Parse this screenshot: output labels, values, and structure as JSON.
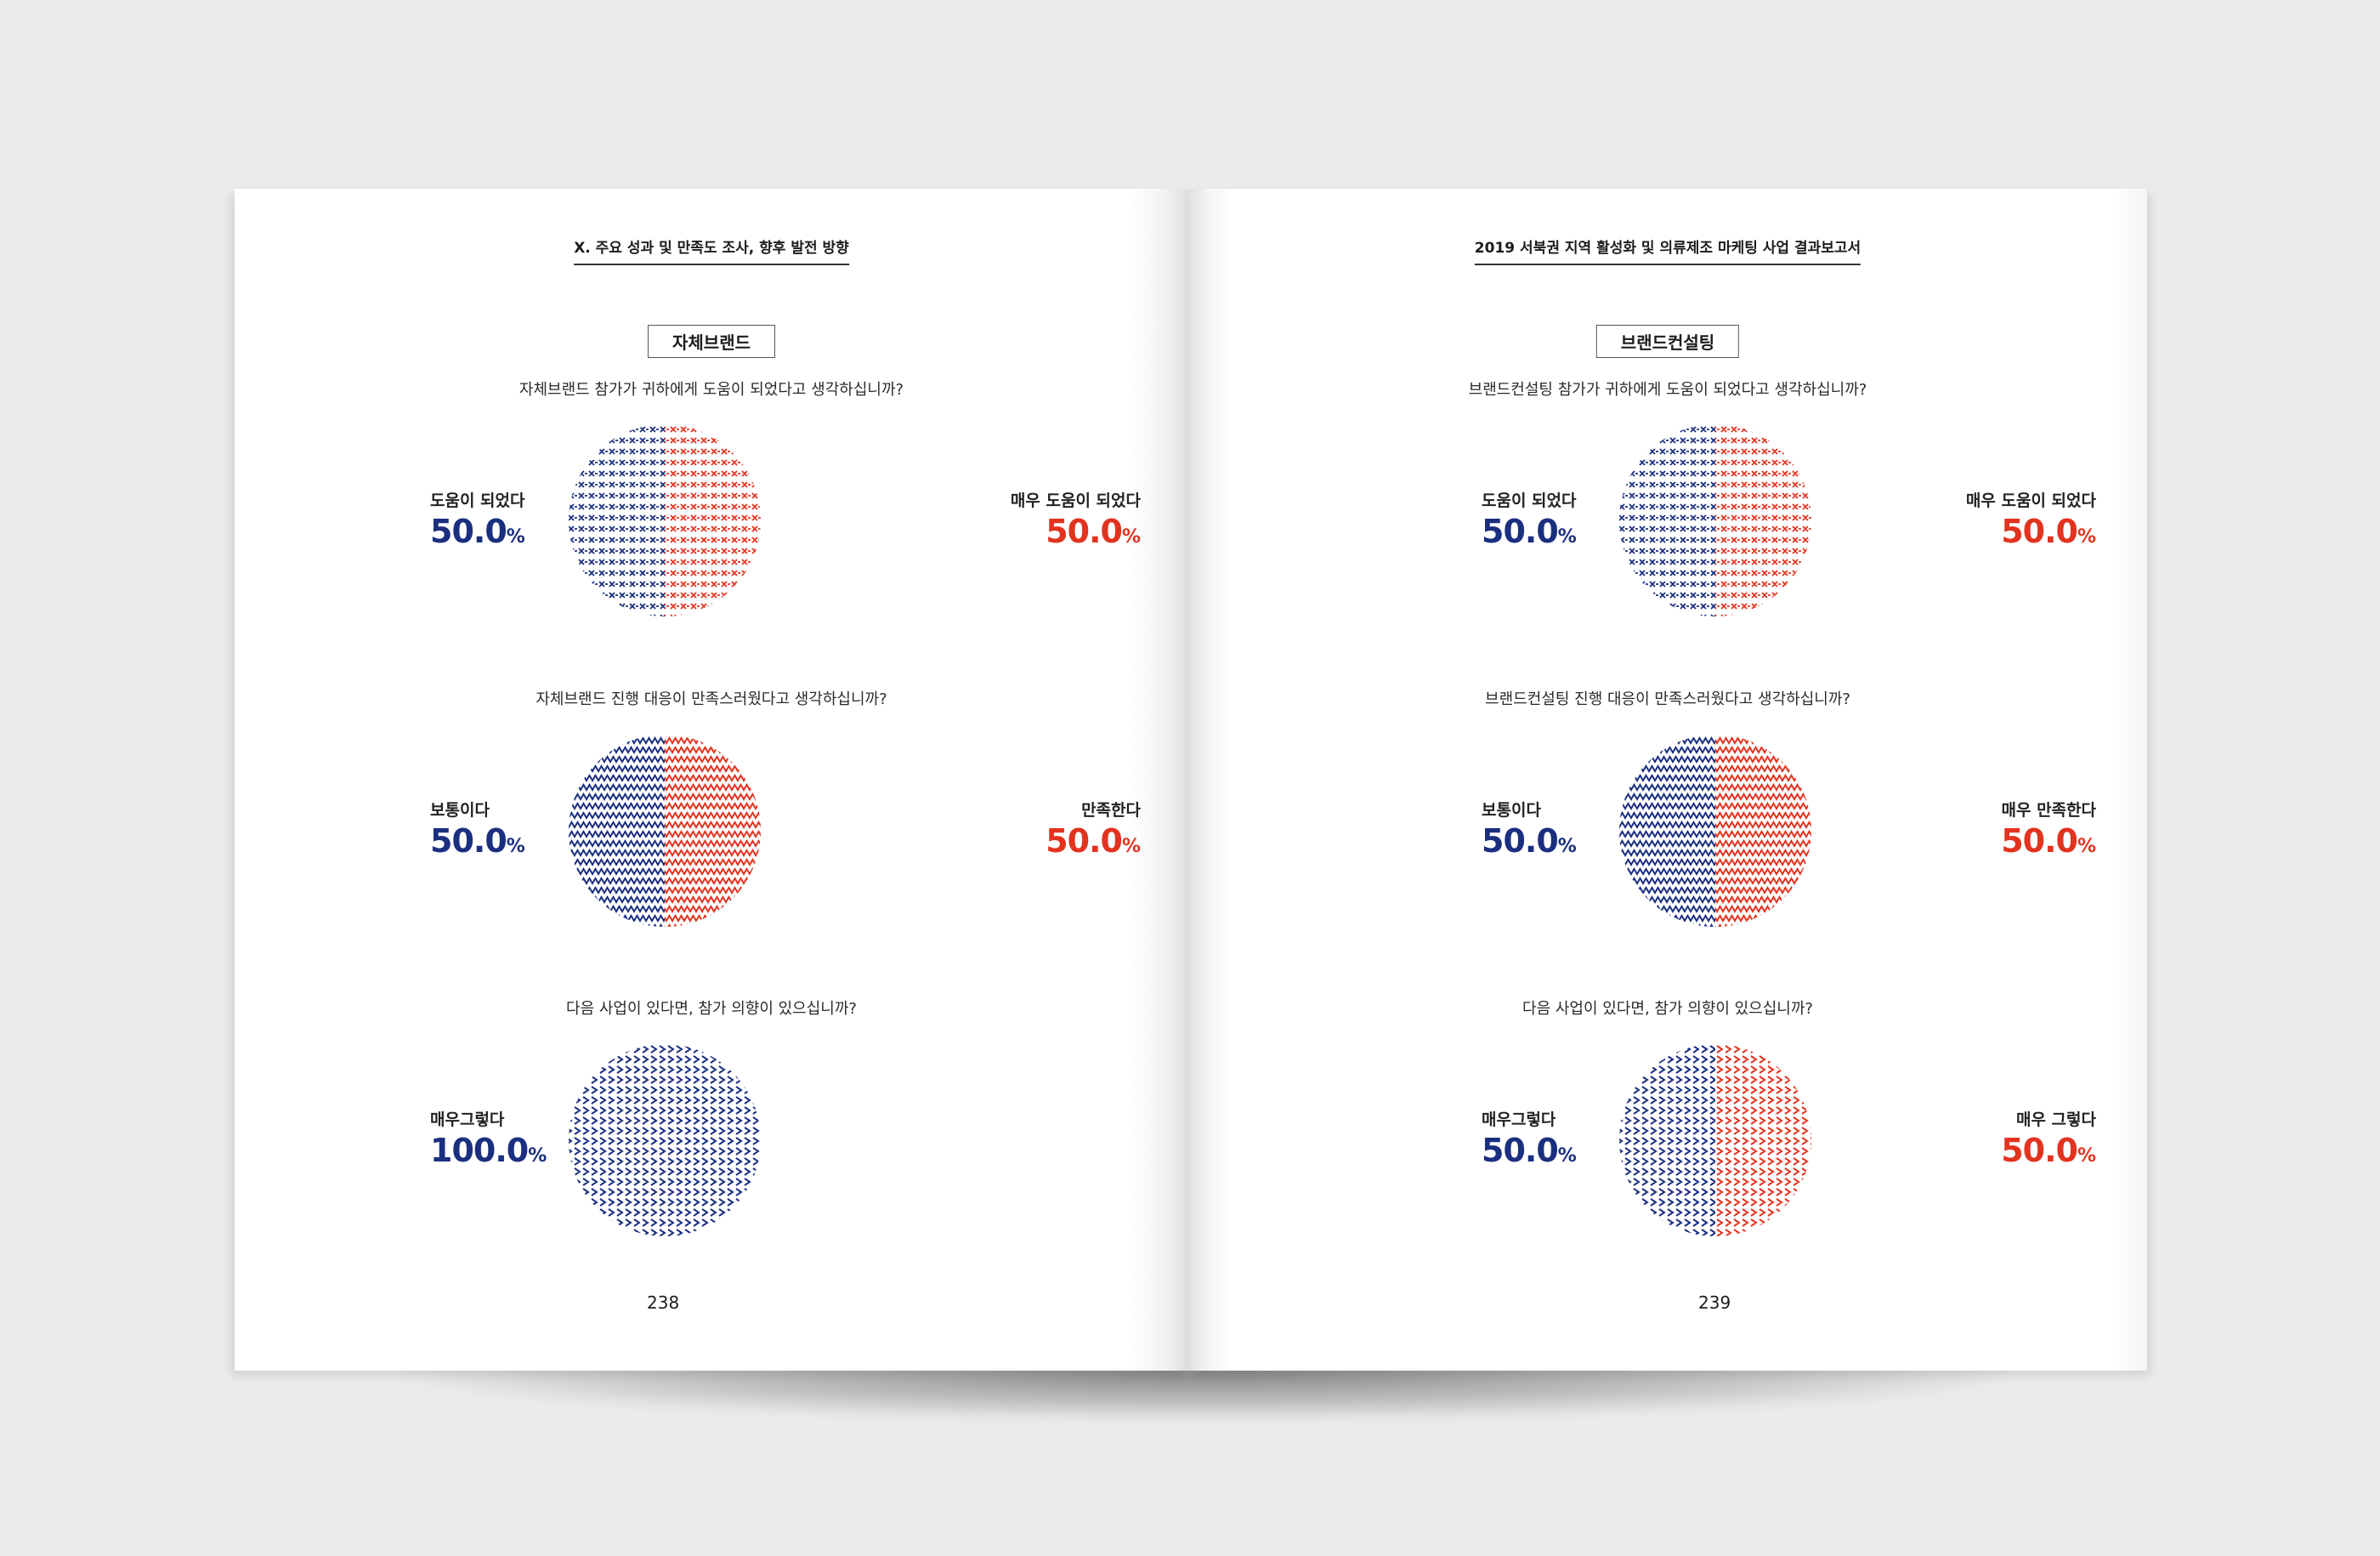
{
  "colors": {
    "blue": "#1b2f80",
    "red": "#e2331f"
  },
  "left_page": {
    "running_head": "Ⅹ. 주요 성과 및 만족도 조사, 향후 발전 방향",
    "section": "자체브랜드",
    "page_number": "238",
    "q1": {
      "question": "자체브랜드 참가가 귀하에게 도움이 되었다고 생각하십니까?",
      "left_label": "도움이 되었다",
      "left_value": "50.0",
      "right_label": "매우 도움이 되었다",
      "right_value": "50.0",
      "unit": "%"
    },
    "q2": {
      "question": "자체브랜드 진행 대응이 만족스러웠다고 생각하십니까?",
      "left_label": "보통이다",
      "left_value": "50.0",
      "right_label": "만족한다",
      "right_value": "50.0",
      "unit": "%"
    },
    "q3": {
      "question": "다음 사업이 있다면, 참가 의향이 있으십니까?",
      "left_label": "매우그렇다",
      "left_value": "100.0",
      "unit": "%"
    }
  },
  "right_page": {
    "running_head": "2019 서북권 지역 활성화 및 의류제조 마케팅 사업 결과보고서",
    "section": "브랜드컨설팅",
    "page_number": "239",
    "q1": {
      "question": "브랜드컨설팅 참가가 귀하에게 도움이 되었다고 생각하십니까?",
      "left_label": "도움이 되었다",
      "left_value": "50.0",
      "right_label": "매우 도움이 되었다",
      "right_value": "50.0",
      "unit": "%"
    },
    "q2": {
      "question": "브랜드컨설팅 진행 대응이 만족스러웠다고 생각하십니까?",
      "left_label": "보통이다",
      "left_value": "50.0",
      "right_label": "매우 만족한다",
      "right_value": "50.0",
      "unit": "%"
    },
    "q3": {
      "question": "다음 사업이 있다면, 참가 의향이 있으십니까?",
      "left_label": "매우그렇다",
      "left_value": "50.0",
      "right_label": "매우 그렇다",
      "right_value": "50.0",
      "unit": "%"
    }
  },
  "chart_data": [
    {
      "type": "pie",
      "title": "자체브랜드 참가가 귀하에게 도움이 되었다고 생각하십니까?",
      "pattern": "x",
      "categories": [
        "도움이 되었다",
        "매우 도움이 되었다"
      ],
      "values": [
        50.0,
        50.0
      ]
    },
    {
      "type": "pie",
      "title": "자체브랜드 진행 대응이 만족스러웠다고 생각하십니까?",
      "pattern": "zigzag",
      "categories": [
        "보통이다",
        "만족한다"
      ],
      "values": [
        50.0,
        50.0
      ]
    },
    {
      "type": "pie",
      "title": "다음 사업이 있다면, 참가 의향이 있으십니까?",
      "pattern": "chevron",
      "categories": [
        "매우그렇다"
      ],
      "values": [
        100.0
      ]
    },
    {
      "type": "pie",
      "title": "브랜드컨설팅 참가가 귀하에게 도움이 되었다고 생각하십니까?",
      "pattern": "x",
      "categories": [
        "도움이 되었다",
        "매우 도움이 되었다"
      ],
      "values": [
        50.0,
        50.0
      ]
    },
    {
      "type": "pie",
      "title": "브랜드컨설팅 진행 대응이 만족스러웠다고 생각하십니까?",
      "pattern": "zigzag",
      "categories": [
        "보통이다",
        "매우 만족한다"
      ],
      "values": [
        50.0,
        50.0
      ]
    },
    {
      "type": "pie",
      "title": "다음 사업이 있다면, 참가 의향이 있으십니까?",
      "pattern": "chevron",
      "categories": [
        "매우그렇다",
        "매우 그렇다"
      ],
      "values": [
        50.0,
        50.0
      ]
    }
  ]
}
